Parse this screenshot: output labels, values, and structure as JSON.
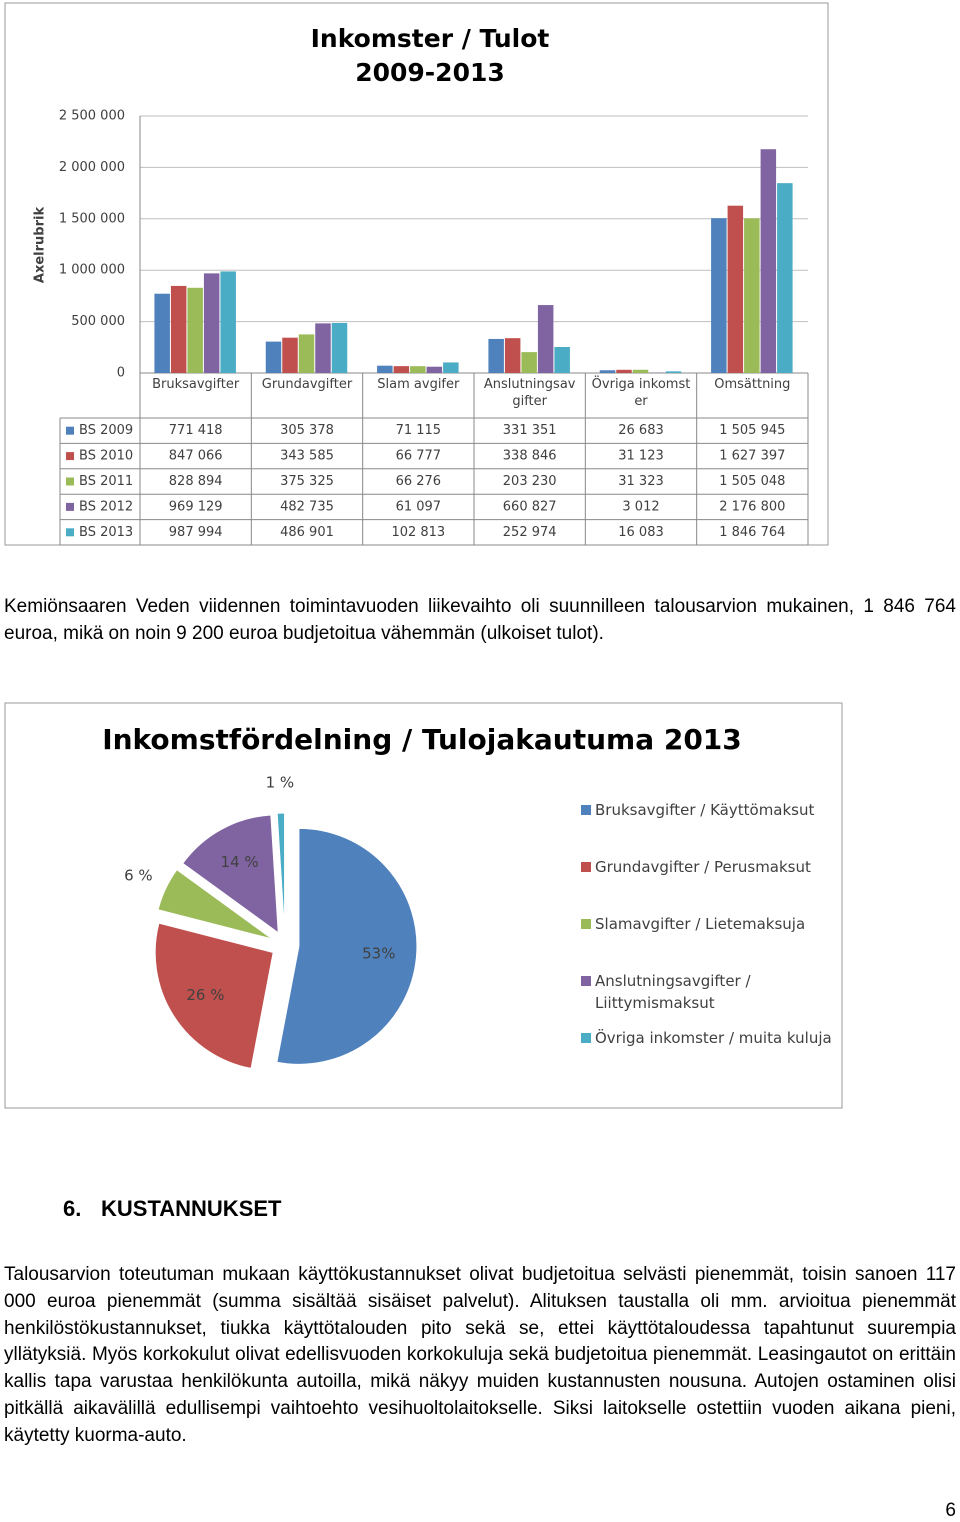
{
  "chart_data": [
    {
      "type": "bar",
      "title": "Inkomster / Tulot",
      "subtitle": "2009-2013",
      "y_label": "Axelrubrik",
      "categories": [
        "Bruksavgifter",
        "Grundavgifter",
        "Slam avgifer",
        "Anslutningsavgifter",
        "Övriga inkomster",
        "Omsättning"
      ],
      "series": [
        {
          "name": "BS 2009",
          "color": "#4f81bd",
          "values": [
            771418,
            305378,
            71115,
            331351,
            26683,
            1505945
          ],
          "value_labels": [
            "771 418",
            "305 378",
            "71 115",
            "331 351",
            "26 683",
            "1 505 945"
          ]
        },
        {
          "name": "BS 2010",
          "color": "#c0504d",
          "values": [
            847066,
            343585,
            66777,
            338846,
            31123,
            1627397
          ],
          "value_labels": [
            "847 066",
            "343 585",
            "66 777",
            "338 846",
            "31 123",
            "1 627 397"
          ]
        },
        {
          "name": "BS 2011",
          "color": "#9bbb59",
          "values": [
            828894,
            375325,
            66276,
            203230,
            31323,
            1505048
          ],
          "value_labels": [
            "828 894",
            "375 325",
            "66 276",
            "203 230",
            "31 323",
            "1 505 048"
          ]
        },
        {
          "name": "BS 2012",
          "color": "#8064a2",
          "values": [
            969129,
            482735,
            61097,
            660827,
            3012,
            2176800
          ],
          "value_labels": [
            "969 129",
            "482 735",
            "61 097",
            "660 827",
            "3 012",
            "2 176 800"
          ]
        },
        {
          "name": "BS 2013",
          "color": "#4bacc6",
          "values": [
            987994,
            486901,
            102813,
            252974,
            16083,
            1846764
          ],
          "value_labels": [
            "987 994",
            "486 901",
            "102 813",
            "252 974",
            "16 083",
            "1 846 764"
          ]
        }
      ],
      "ylim": [
        0,
        2500000
      ],
      "yticks": [
        0,
        {
          "value": 500000,
          "label": "500 000"
        },
        {
          "value": 1000000,
          "label": "1 000 000"
        },
        {
          "value": 1500000,
          "label": "1 500 000"
        },
        {
          "value": 2000000,
          "label": "2 000 000"
        },
        {
          "value": 2500000,
          "label": "2 500 000"
        }
      ],
      "grid": true
    },
    {
      "type": "pie",
      "title": "Inkomstfördelning / Tulojakautuma 2013",
      "categories": [
        "Bruksavgifter / Käyttömaksut",
        "Grundavgifter / Perusmaksut",
        "Slamavgifter / Lietemaksuja",
        "Anslutningsavgifter / Liittymismaksut",
        "Övriga inkomster / muita kuluja"
      ],
      "values": [
        53,
        26,
        6,
        14,
        1
      ],
      "value_labels": [
        "53%",
        "26 %",
        "6 %",
        "14 %",
        "1 %"
      ],
      "colors": [
        "#4f81bd",
        "#c0504d",
        "#9bbb59",
        "#8064a2",
        "#4bacc6"
      ],
      "exploded": true
    }
  ],
  "document": {
    "paragraph_1": "Kemiönsaaren Veden viidennen toimintavuoden liikevaihto oli suunnilleen talousarvion mukainen, 1 846 764 euroa, mikä on noin 9 200 euroa budjetoitua vähemmän (ulkoiset tulot).",
    "heading_number": "6.",
    "heading": "KUSTANNUKSET",
    "paragraph_2": "Talousarvion toteutuman mukaan käyttökustannukset olivat budjetoitua selvästi pienemmät, toisin sanoen 117 000 euroa pienemmät (summa sisältää sisäiset palvelut). Alituksen taustalla oli mm. arvioitua pienemmät henkilöstökustannukset, tiukka käyttötalouden pito sekä se, ettei käyttötaloudessa tapahtunut suurempia yllätyksiä. Myös korkokulut olivat edellisvuoden korkokuluja sekä budjetoitua pienemmät. Leasingautot on erittäin kallis tapa varustaa henkilökunta autoilla, mikä näkyy muiden kustannusten nousuna. Autojen ostaminen olisi pitkällä aikavälillä edullisempi vaihtoehto vesihuoltolaitokselle. Siksi laitokselle ostettiin vuoden aikana pieni, käytetty kuorma-auto.",
    "page_number": "6"
  }
}
